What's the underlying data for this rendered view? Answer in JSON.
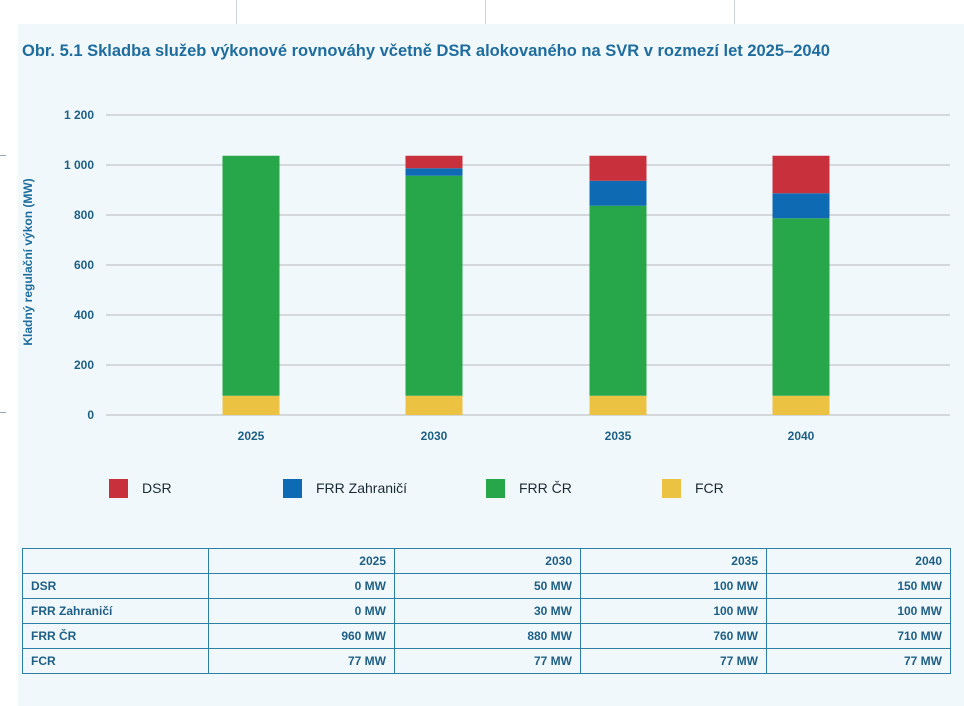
{
  "figure": {
    "title": "Obr. 5.1 Skladba služeb výkonové rovnováhy včetně DSR alokovaného na SVR v rozmezí let 2025–2040"
  },
  "chart_data": {
    "type": "bar",
    "stacked": true,
    "title": "Obr. 5.1 Skladba služeb výkonové rovnováhy včetně DSR alokovaného na SVR v rozmezí let 2025–2040",
    "xlabel": "",
    "ylabel": "Kladný regulační výkon (MW)",
    "ylim": [
      0,
      1200
    ],
    "yticks": [
      0,
      200,
      400,
      600,
      800,
      1000,
      1200
    ],
    "ytick_labels": [
      "0",
      "200",
      "400",
      "600",
      "800",
      "1 000",
      "1 200"
    ],
    "grid": true,
    "categories": [
      "2025",
      "2030",
      "2035",
      "2040"
    ],
    "series": [
      {
        "key": "fcr",
        "name": "FCR",
        "color": "#ecc243",
        "values": [
          77,
          77,
          77,
          77
        ]
      },
      {
        "key": "frr_cr",
        "name": "FRR ČR",
        "color": "#27a64a",
        "values": [
          960,
          880,
          760,
          710
        ]
      },
      {
        "key": "frr_zahranici",
        "name": "FRR Zahraničí",
        "color": "#0e6bb3",
        "values": [
          0,
          30,
          100,
          100
        ]
      },
      {
        "key": "dsr",
        "name": "DSR",
        "color": "#c8303c",
        "values": [
          0,
          50,
          100,
          150
        ]
      }
    ],
    "legend_order": [
      "dsr",
      "frr_zahranici",
      "frr_cr",
      "fcr"
    ],
    "legend_position": "bottom"
  },
  "legend": [
    {
      "label": "DSR",
      "color": "#c8303c"
    },
    {
      "label": "FRR Zahraničí",
      "color": "#0e6bb3"
    },
    {
      "label": "FRR ČR",
      "color": "#27a64a"
    },
    {
      "label": "FCR",
      "color": "#ecc243"
    }
  ],
  "table": {
    "corner": "",
    "columns": [
      "2025",
      "2030",
      "2035",
      "2040"
    ],
    "rows": [
      {
        "label": "DSR",
        "cells": [
          "0 MW",
          "50 MW",
          "100 MW",
          "150 MW"
        ]
      },
      {
        "label": "FRR Zahraničí",
        "cells": [
          "0 MW",
          "30 MW",
          "100 MW",
          "100 MW"
        ]
      },
      {
        "label": "FRR ČR",
        "cells": [
          "960 MW",
          "880 MW",
          "760 MW",
          "710 MW"
        ]
      },
      {
        "label": "FCR",
        "cells": [
          "77 MW",
          "77 MW",
          "77 MW",
          "77 MW"
        ]
      }
    ]
  }
}
